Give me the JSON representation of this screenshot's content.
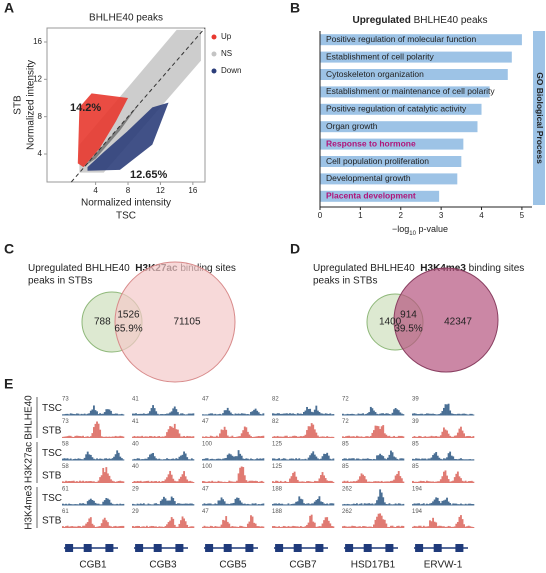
{
  "panel_a": {
    "letter": "A",
    "title": "BHLHE40 peaks",
    "ylabel_outer": "STB",
    "ylabel_inner": "Normalized intensity",
    "xlabel_inner": "Normalized intensity",
    "xlabel_outer": "TSC",
    "legend": [
      {
        "name": "Up",
        "color": "#e8382f"
      },
      {
        "name": "NS",
        "color": "#c4c4c4"
      },
      {
        "name": "Down",
        "color": "#2c3e7a"
      }
    ],
    "up_percent": "14.2%",
    "down_percent": "12.65%",
    "xlim": [
      -2,
      17.5
    ],
    "xticks": [
      4,
      8,
      12,
      16
    ],
    "ylim": [
      1,
      17.5
    ],
    "yticks": [
      4,
      8,
      12,
      16
    ]
  },
  "panel_b": {
    "letter": "B",
    "title_bold": "Upregulated",
    "title_rest": "BHLHE40 peaks",
    "color": "#9dc3e6",
    "highlight_color": "#b0157a",
    "categories": [
      "Positive regulation of molecular function",
      "Establishment of cell polarity",
      "Cytoskeleton organization",
      "Establishment or maintenance of cell polarity",
      "Positive regulation of catalytic activity",
      "Organ growth",
      "Response to hormone",
      "Cell population proliferation",
      "Developmental growth",
      "Placenta development"
    ],
    "values": [
      5.0,
      4.75,
      4.65,
      4.2,
      4.0,
      3.9,
      3.55,
      3.5,
      3.4,
      2.95
    ],
    "highlight": [
      false,
      false,
      false,
      false,
      false,
      false,
      true,
      false,
      false,
      true
    ],
    "xlim": [
      0,
      5.25
    ],
    "xticks": [
      0,
      1,
      2,
      3,
      4,
      5
    ],
    "xlabel_prefix": "−log",
    "xlabel_sub": "10",
    "xlabel_suffix": " p-value",
    "side_label": "GO Biological Process"
  },
  "panel_c": {
    "letter": "C",
    "line1_a": "Upregulated BHLHE40",
    "line1_mark": "H3K27ac",
    "line1_b": "binding sites",
    "line2": "peaks in STBs",
    "only_left": 788,
    "overlap": 1526,
    "overlap_percent": "65.9%",
    "only_right": 71105
  },
  "panel_d": {
    "letter": "D",
    "line1_a": "Upregulated BHLHE40",
    "line1_mark": "H3K4me3",
    "line1_b": "binding sites",
    "line2": "peaks in STBs",
    "only_left": 1400,
    "overlap": 914,
    "overlap_percent": "39.5%",
    "only_right": 42347
  },
  "panel_e": {
    "letter": "E",
    "tracks": [
      {
        "mark": "BHLHE40",
        "rows": [
          {
            "cell": "TSC",
            "scales": [
              73,
              41,
              47,
              82,
              72,
              39
            ]
          },
          {
            "cell": "STB",
            "scales": [
              73,
              41,
              47,
              82,
              72,
              39
            ]
          }
        ]
      },
      {
        "mark": "H3K27ac",
        "rows": [
          {
            "cell": "TSC",
            "scales": [
              58,
              40,
              100,
              125,
              85,
              85
            ]
          },
          {
            "cell": "STB",
            "scales": [
              58,
              40,
              100,
              125,
              85,
              85
            ]
          }
        ]
      },
      {
        "mark": "H3K4me3",
        "rows": [
          {
            "cell": "TSC",
            "scales": [
              61,
              29,
              47,
              188,
              262,
              194
            ]
          },
          {
            "cell": "STB",
            "scales": [
              61,
              29,
              47,
              188,
              262,
              194
            ]
          }
        ]
      }
    ],
    "genes": [
      "CGB1",
      "CGB3",
      "CGB5",
      "CGB7",
      "HSD17B1",
      "ERVW-1"
    ]
  }
}
